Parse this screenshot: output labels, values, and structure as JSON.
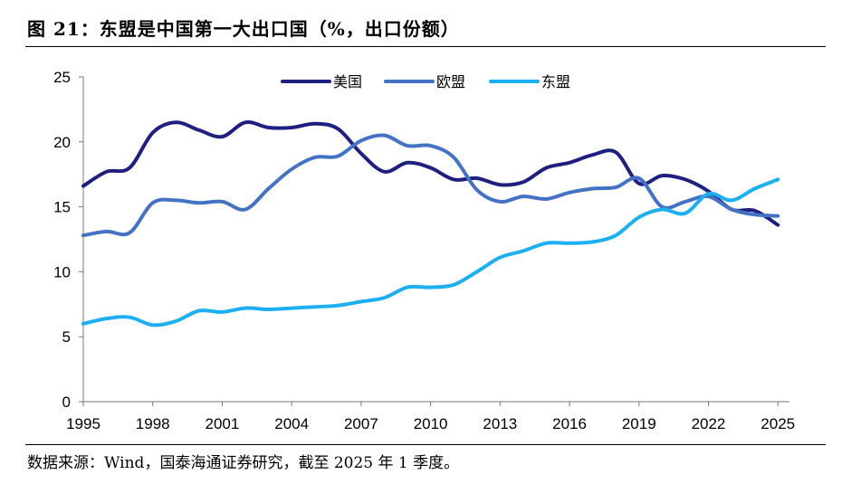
{
  "header": {
    "title": "图 21：东盟是中国第一大出口国（%，出口份额）"
  },
  "footer": {
    "source": "数据来源：Wind，国泰海通证券研究，截至 2025 年 1 季度。"
  },
  "chart_data": {
    "type": "line",
    "title": "",
    "xlabel": "",
    "ylabel": "",
    "xlim": [
      1995,
      2025.5
    ],
    "ylim": [
      0,
      25
    ],
    "xticks": [
      1995,
      1998,
      2001,
      2004,
      2007,
      2010,
      2013,
      2016,
      2019,
      2022,
      2025
    ],
    "yticks": [
      0,
      5,
      10,
      15,
      20,
      25
    ],
    "legend_position": "top-center",
    "x": [
      1995,
      1996,
      1997,
      1998,
      1999,
      2000,
      2001,
      2002,
      2003,
      2004,
      2005,
      2006,
      2007,
      2008,
      2009,
      2010,
      2011,
      2012,
      2013,
      2014,
      2015,
      2016,
      2017,
      2018,
      2019,
      2020,
      2021,
      2022,
      2023,
      2024,
      2025
    ],
    "series": [
      {
        "name": "美国",
        "color": "#1f1f80",
        "values": [
          16.6,
          17.7,
          18.0,
          20.7,
          21.5,
          20.9,
          20.4,
          21.5,
          21.1,
          21.1,
          21.4,
          21.0,
          19.1,
          17.7,
          18.4,
          18.0,
          17.1,
          17.2,
          16.7,
          16.9,
          18.0,
          18.4,
          19.0,
          19.2,
          16.8,
          17.4,
          17.1,
          16.2,
          14.8,
          14.7,
          13.6
        ]
      },
      {
        "name": "欧盟",
        "color": "#4472c4",
        "values": [
          12.8,
          13.1,
          13.0,
          15.3,
          15.5,
          15.3,
          15.4,
          14.8,
          16.4,
          17.9,
          18.8,
          18.9,
          20.1,
          20.5,
          19.7,
          19.7,
          18.8,
          16.3,
          15.4,
          15.8,
          15.6,
          16.1,
          16.4,
          16.5,
          17.2,
          15.0,
          15.4,
          15.8,
          14.8,
          14.4,
          14.3
        ]
      },
      {
        "name": "东盟",
        "color": "#1eaff0",
        "values": [
          6.0,
          6.4,
          6.5,
          5.9,
          6.2,
          7.0,
          6.9,
          7.2,
          7.1,
          7.2,
          7.3,
          7.4,
          7.7,
          8.0,
          8.8,
          8.8,
          9.0,
          10.0,
          11.1,
          11.6,
          12.2,
          12.2,
          12.3,
          12.8,
          14.2,
          14.8,
          14.5,
          16.0,
          15.5,
          16.4,
          17.1
        ]
      }
    ]
  }
}
